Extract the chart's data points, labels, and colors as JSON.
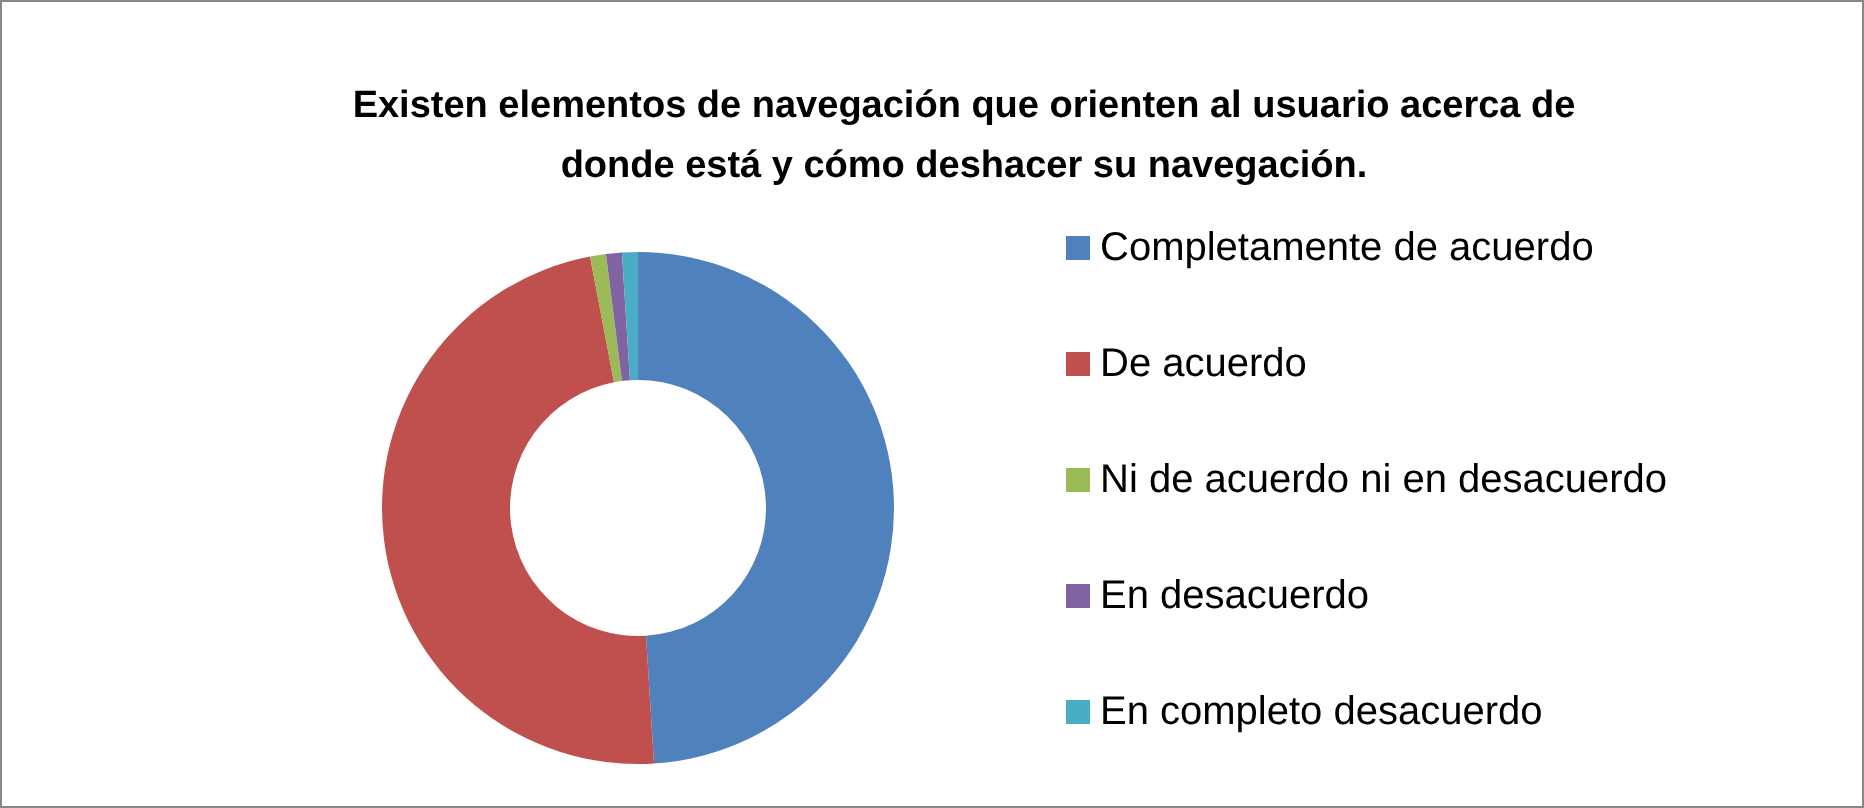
{
  "chart_data": {
    "type": "donut",
    "title": "Existen elementos de navegación que orienten al usuario acerca de\ndonde está y cómo deshacer su navegación.",
    "categories": [
      "Completamente de acuerdo",
      "De acuerdo",
      "Ni de acuerdo ni en desacuerdo",
      "En desacuerdo",
      "En completo desacuerdo"
    ],
    "values": [
      49,
      48,
      1,
      1,
      1
    ],
    "colors": [
      "#4f81bd",
      "#c0504d",
      "#9bbb59",
      "#8064a2",
      "#4bacc6"
    ],
    "legend": "right"
  }
}
